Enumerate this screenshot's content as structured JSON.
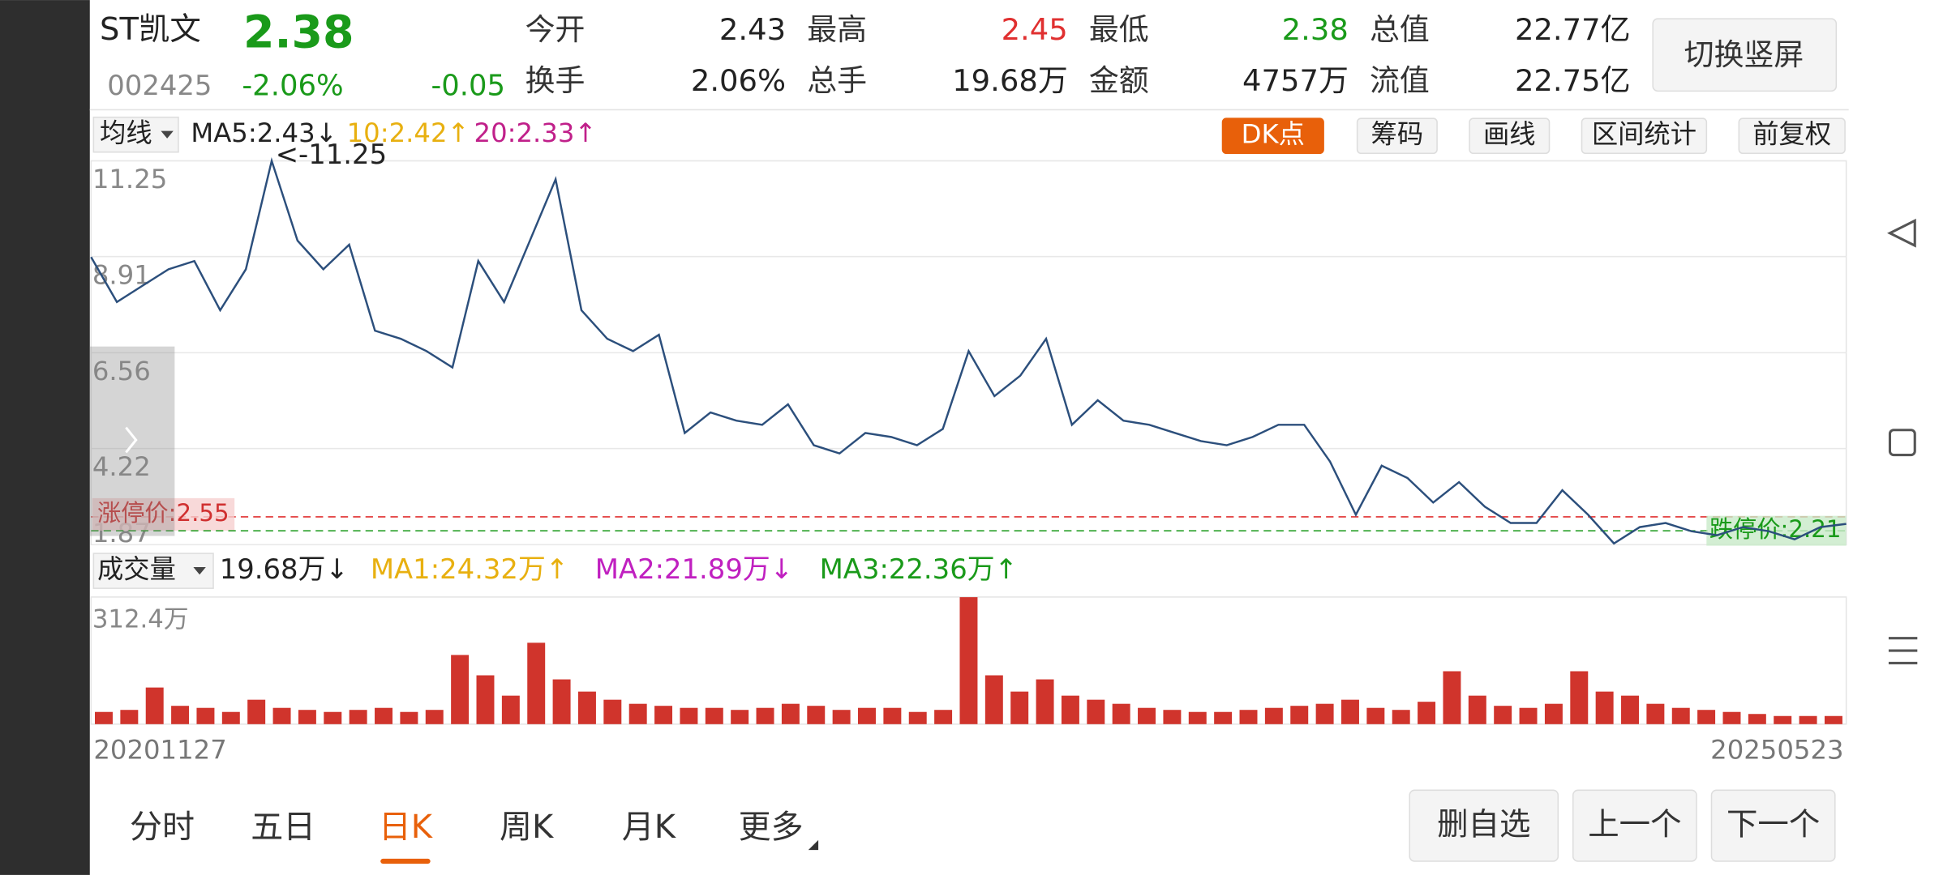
{
  "header": {
    "name": "ST凯文",
    "price": "2.38",
    "code": "002425",
    "change_pct": "-2.06%",
    "change": "-0.05",
    "stats": [
      [
        {
          "label": "今开",
          "value": "2.43"
        },
        {
          "label": "最高",
          "value": "2.45"
        },
        {
          "label": "最低",
          "value": "2.38"
        },
        {
          "label": "总值",
          "value": "22.77亿"
        }
      ],
      [
        {
          "label": "换手",
          "value": "2.06%"
        },
        {
          "label": "总手",
          "value": "19.68万"
        },
        {
          "label": "金额",
          "value": "4757万"
        },
        {
          "label": "流值",
          "value": "22.75亿"
        }
      ]
    ],
    "orientation_button": "切换竖屏"
  },
  "toolbar": {
    "ma_menu": "均线",
    "ma5": "MA5:2.43↓",
    "ma10": "10:2.42↑",
    "ma20": "20:2.33↑",
    "buttons": [
      "DK点",
      "筹码",
      "画线",
      "区间统计",
      "前复权"
    ]
  },
  "volume_header": {
    "menu": "成交量",
    "volume": "19.68万↓",
    "ma1": "MA1:24.32万↑",
    "ma2": "MA2:21.89万↓",
    "ma3": "MA3:22.36万↑"
  },
  "chart_data": [
    {
      "type": "line",
      "color": "#2c4f7c",
      "ylim": [
        1.87,
        11.25
      ],
      "yticks": [
        11.25,
        8.91,
        6.56,
        4.22,
        1.87
      ],
      "grid": true,
      "max_label": "<-11.25",
      "limit_up": {
        "label": "涨停价:2.55",
        "value": 2.55
      },
      "limit_down": {
        "label": "跌停价:2.21",
        "value": 2.21
      },
      "values": [
        8.9,
        7.8,
        8.2,
        8.6,
        8.8,
        7.6,
        8.6,
        11.25,
        9.3,
        8.6,
        9.2,
        7.1,
        6.9,
        6.6,
        6.2,
        8.8,
        7.8,
        9.3,
        10.8,
        7.6,
        6.9,
        6.6,
        7.0,
        4.6,
        5.1,
        4.9,
        4.8,
        5.3,
        4.3,
        4.1,
        4.6,
        4.5,
        4.3,
        4.7,
        6.6,
        5.5,
        6.0,
        6.9,
        4.8,
        5.4,
        4.9,
        4.8,
        4.6,
        4.4,
        4.3,
        4.5,
        4.8,
        4.8,
        3.9,
        2.6,
        3.8,
        3.5,
        2.9,
        3.4,
        2.8,
        2.4,
        2.4,
        3.2,
        2.6,
        1.9,
        2.3,
        2.4,
        2.2,
        2.1,
        2.3,
        2.2,
        2.0,
        2.3,
        2.38
      ]
    },
    {
      "type": "bar",
      "color": "#d0342c",
      "ylim": [
        0,
        312.4
      ],
      "yticks": [
        {
          "value": 312.4,
          "label": "312.4万"
        }
      ],
      "x_labels": [
        "20201127",
        "20250523"
      ],
      "values": [
        30,
        35,
        90,
        45,
        40,
        30,
        60,
        40,
        35,
        30,
        35,
        40,
        30,
        35,
        170,
        120,
        70,
        200,
        110,
        80,
        60,
        50,
        45,
        40,
        40,
        35,
        40,
        50,
        45,
        35,
        40,
        40,
        30,
        35,
        312,
        120,
        80,
        110,
        70,
        60,
        50,
        40,
        35,
        30,
        30,
        35,
        40,
        45,
        50,
        60,
        40,
        35,
        55,
        130,
        70,
        45,
        40,
        50,
        130,
        80,
        70,
        50,
        40,
        35,
        30,
        25,
        20,
        20,
        20
      ]
    }
  ],
  "tabs": [
    "分时",
    "五日",
    "日K",
    "周K",
    "月K",
    "更多"
  ],
  "actions": [
    "删自选",
    "上一个",
    "下一个"
  ]
}
